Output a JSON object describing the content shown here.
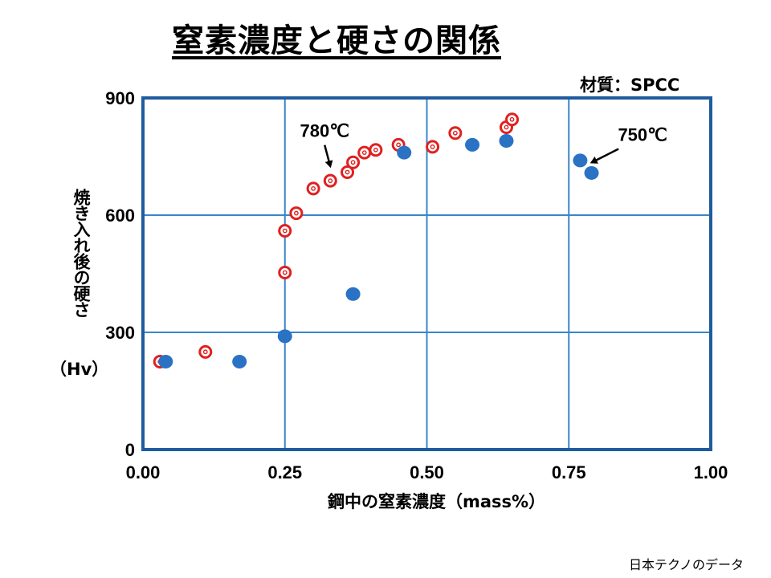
{
  "title": "窒素濃度と硬さの関係",
  "material_label": "材質：SPCC",
  "y_axis_label": "焼き入れ後の硬さ",
  "y_axis_unit": "（Hv）",
  "x_axis_label": "鋼中の窒素濃度（mass%）",
  "source": "日本テクノのデータ",
  "chart_data": {
    "type": "scatter",
    "title": "窒素濃度と硬さの関係",
    "xlabel": "鋼中の窒素濃度（mass%）",
    "ylabel": "焼き入れ後の硬さ（Hv）",
    "xlim": [
      0,
      1.0
    ],
    "ylim": [
      0,
      900
    ],
    "xticks": [
      "0.00",
      "0.25",
      "0.50",
      "0.75",
      "1.00"
    ],
    "yticks": [
      "0",
      "300",
      "600",
      "900"
    ],
    "grid": true,
    "colors": {
      "series_780": "#e02020",
      "series_750": "#2a72c4",
      "axis": "#1f5c9e",
      "grid": "#3a86c8"
    },
    "annotations": [
      {
        "text": "780℃",
        "x": 0.33,
        "y": 700,
        "label_x": 0.32,
        "label_y": 800
      },
      {
        "text": "750℃",
        "x": 0.79,
        "y": 710,
        "label_x": 0.88,
        "label_y": 790
      }
    ],
    "series": [
      {
        "key": "780",
        "marker": "ring",
        "points": [
          [
            0.03,
            225
          ],
          [
            0.11,
            250
          ],
          [
            0.25,
            453
          ],
          [
            0.25,
            560
          ],
          [
            0.27,
            605
          ],
          [
            0.3,
            668
          ],
          [
            0.33,
            688
          ],
          [
            0.36,
            710
          ],
          [
            0.37,
            735
          ],
          [
            0.39,
            760
          ],
          [
            0.41,
            767
          ],
          [
            0.45,
            780
          ],
          [
            0.51,
            775
          ],
          [
            0.55,
            810
          ],
          [
            0.64,
            825
          ],
          [
            0.65,
            845
          ]
        ]
      },
      {
        "key": "750",
        "marker": "dot",
        "points": [
          [
            0.04,
            225
          ],
          [
            0.17,
            225
          ],
          [
            0.25,
            290
          ],
          [
            0.37,
            398
          ],
          [
            0.46,
            760
          ],
          [
            0.58,
            780
          ],
          [
            0.64,
            790
          ],
          [
            0.77,
            740
          ],
          [
            0.79,
            708
          ]
        ]
      }
    ]
  }
}
